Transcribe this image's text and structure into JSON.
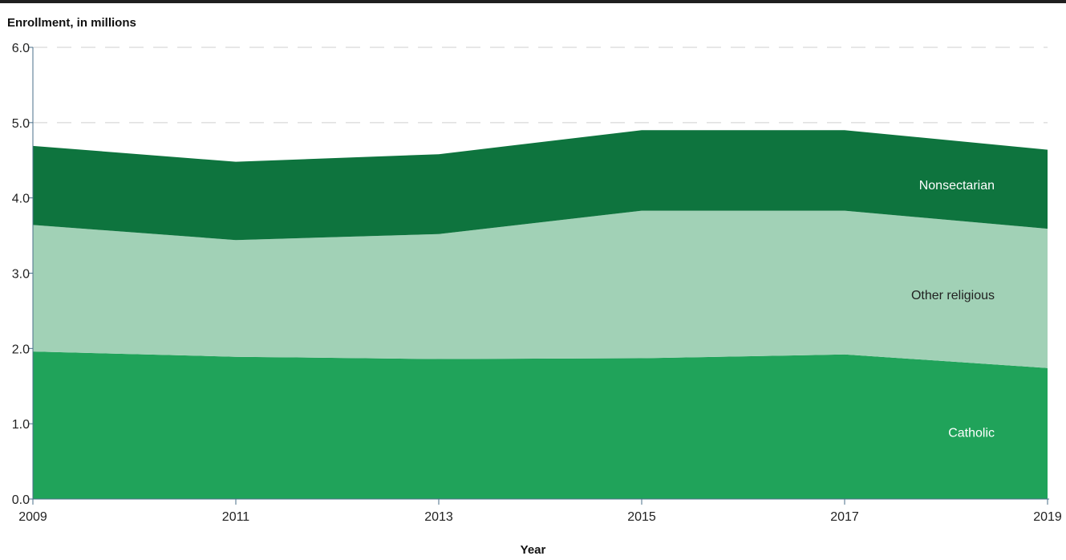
{
  "chart_data": {
    "type": "area",
    "stacked": true,
    "ylabel": "Enrollment, in millions",
    "xlabel": "Year",
    "x": [
      2009,
      2011,
      2013,
      2015,
      2017,
      2019
    ],
    "x_tick_labels": [
      "2009",
      "2011",
      "2013",
      "2015",
      "2017",
      "2019"
    ],
    "y_tick_labels": [
      "0.0",
      "1.0",
      "2.0",
      "3.0",
      "4.0",
      "5.0",
      "6.0"
    ],
    "ylim": [
      0,
      6
    ],
    "grid": "horizontal dashed",
    "series": [
      {
        "name": "Catholic",
        "values": [
          1.96,
          1.89,
          1.86,
          1.87,
          1.92,
          1.74
        ],
        "color": "#20a35a",
        "label_color": "#ffffff"
      },
      {
        "name": "Other religious",
        "values": [
          1.68,
          1.55,
          1.66,
          1.96,
          1.91,
          1.85
        ],
        "color": "#a1d1b6",
        "label_color": "#222222"
      },
      {
        "name": "Nonsectarian",
        "values": [
          1.05,
          1.04,
          1.06,
          1.07,
          1.07,
          1.05
        ],
        "color": "#0e743e",
        "label_color": "#ffffff"
      }
    ]
  }
}
